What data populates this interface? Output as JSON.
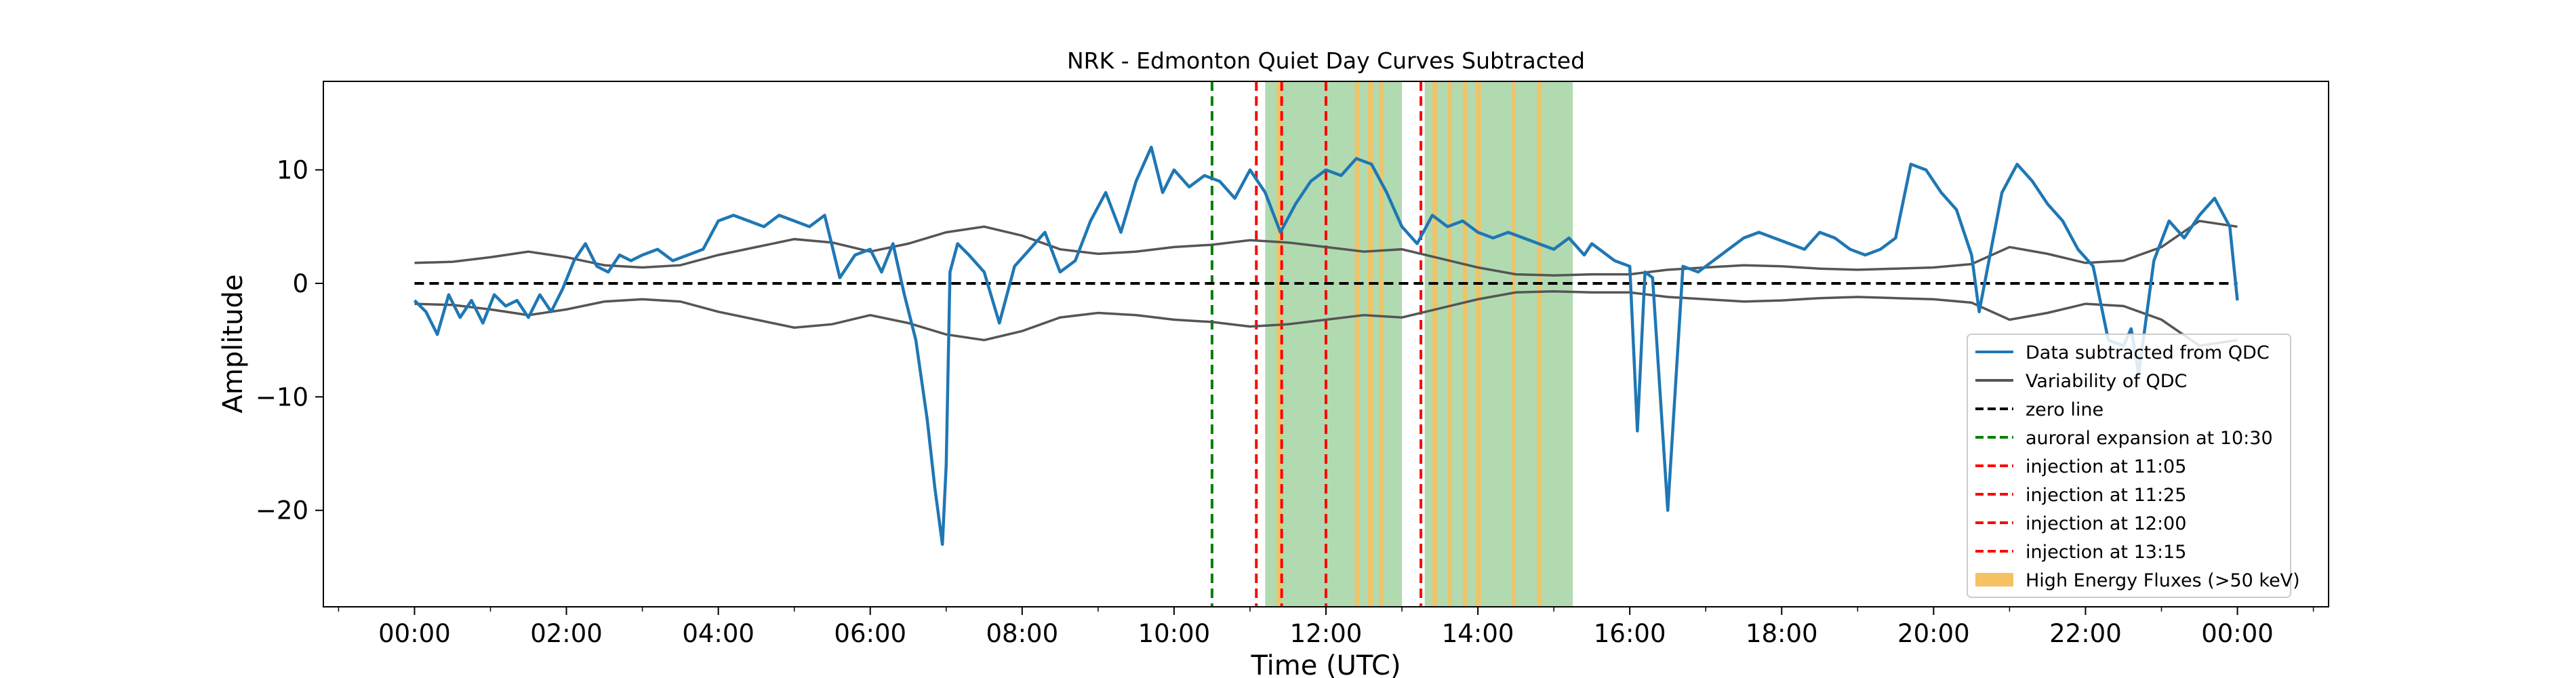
{
  "chart_data": {
    "type": "line",
    "title": "NRK - Edmonton  Quiet Day Curves Subtracted",
    "xlabel": "Time (UTC)",
    "ylabel": "Amplitude",
    "xlim": [
      -1.2,
      25.2
    ],
    "ylim": [
      -28.5,
      17.8
    ],
    "x_unit": "hours UTC",
    "x_ticks": [
      {
        "value": 0,
        "label": "00:00"
      },
      {
        "value": 2,
        "label": "02:00"
      },
      {
        "value": 4,
        "label": "04:00"
      },
      {
        "value": 6,
        "label": "06:00"
      },
      {
        "value": 8,
        "label": "08:00"
      },
      {
        "value": 10,
        "label": "10:00"
      },
      {
        "value": 12,
        "label": "12:00"
      },
      {
        "value": 14,
        "label": "14:00"
      },
      {
        "value": 16,
        "label": "16:00"
      },
      {
        "value": 18,
        "label": "18:00"
      },
      {
        "value": 20,
        "label": "20:00"
      },
      {
        "value": 22,
        "label": "22:00"
      },
      {
        "value": 24,
        "label": "00:00"
      }
    ],
    "y_ticks": [
      {
        "value": 10,
        "label": "10"
      },
      {
        "value": 0,
        "label": "0"
      },
      {
        "value": -10,
        "label": "−10"
      },
      {
        "value": -20,
        "label": "−20"
      }
    ],
    "grid": false,
    "legend_position": "lower-right",
    "colors": {
      "data": "#1f77b4",
      "variability": "#555555",
      "zero": "#000000",
      "auroral": "#008000",
      "injection": "#ff0000",
      "green_span": "#a3d3a3",
      "high_energy": "#f5c162"
    },
    "series": [
      {
        "name": "Data subtracted from QDC",
        "x": [
          0,
          0.15,
          0.3,
          0.45,
          0.6,
          0.75,
          0.9,
          1.05,
          1.2,
          1.35,
          1.5,
          1.65,
          1.8,
          1.95,
          2.1,
          2.25,
          2.4,
          2.55,
          2.7,
          2.85,
          3.0,
          3.2,
          3.4,
          3.6,
          3.8,
          4.0,
          4.2,
          4.4,
          4.6,
          4.8,
          5.0,
          5.2,
          5.4,
          5.6,
          5.8,
          6.0,
          6.15,
          6.3,
          6.45,
          6.6,
          6.75,
          6.85,
          6.95,
          7.0,
          7.05,
          7.15,
          7.3,
          7.5,
          7.7,
          7.9,
          8.1,
          8.3,
          8.5,
          8.7,
          8.9,
          9.1,
          9.3,
          9.5,
          9.7,
          9.85,
          10.0,
          10.2,
          10.4,
          10.6,
          10.8,
          11.0,
          11.2,
          11.4,
          11.6,
          11.8,
          12.0,
          12.2,
          12.4,
          12.6,
          12.8,
          13.0,
          13.2,
          13.4,
          13.6,
          13.8,
          14.0,
          14.2,
          14.4,
          14.6,
          14.8,
          15.0,
          15.2,
          15.4,
          15.5,
          15.6,
          15.8,
          16.0,
          16.1,
          16.2,
          16.3,
          16.5,
          16.7,
          16.9,
          17.1,
          17.3,
          17.5,
          17.7,
          17.9,
          18.1,
          18.3,
          18.5,
          18.7,
          18.9,
          19.1,
          19.3,
          19.5,
          19.7,
          19.9,
          20.1,
          20.3,
          20.5,
          20.6,
          20.7,
          20.9,
          21.1,
          21.3,
          21.5,
          21.7,
          21.9,
          22.1,
          22.3,
          22.5,
          22.6,
          22.7,
          22.8,
          22.9,
          23.1,
          23.3,
          23.5,
          23.7,
          23.9,
          24.0
        ],
        "y": [
          -1.5,
          -2.5,
          -4.5,
          -1.0,
          -3.0,
          -1.5,
          -3.5,
          -1.0,
          -2.0,
          -1.5,
          -3.0,
          -1.0,
          -2.5,
          -0.5,
          2.0,
          3.5,
          1.5,
          1.0,
          2.5,
          2.0,
          2.5,
          3.0,
          2.0,
          2.5,
          3.0,
          5.5,
          6.0,
          5.5,
          5.0,
          6.0,
          5.5,
          5.0,
          6.0,
          0.5,
          2.5,
          3.0,
          1.0,
          3.5,
          -1.0,
          -5.0,
          -12.0,
          -18.0,
          -23.0,
          -16.0,
          1.0,
          3.5,
          2.5,
          1.0,
          -3.5,
          1.5,
          3.0,
          4.5,
          1.0,
          2.0,
          5.5,
          8.0,
          4.5,
          9.0,
          12.0,
          8.0,
          10.0,
          8.5,
          9.5,
          9.0,
          7.5,
          10.0,
          8.0,
          4.5,
          7.0,
          9.0,
          10.0,
          9.5,
          11.0,
          10.5,
          8.0,
          5.0,
          3.5,
          6.0,
          5.0,
          5.5,
          4.5,
          4.0,
          4.5,
          4.0,
          3.5,
          3.0,
          4.0,
          2.5,
          3.5,
          3.0,
          2.0,
          1.5,
          -13.0,
          1.0,
          0.5,
          -20.0,
          1.5,
          1.0,
          2.0,
          3.0,
          4.0,
          4.5,
          4.0,
          3.5,
          3.0,
          4.5,
          4.0,
          3.0,
          2.5,
          3.0,
          4.0,
          10.5,
          10.0,
          8.0,
          6.5,
          2.5,
          -2.5,
          1.0,
          8.0,
          10.5,
          9.0,
          7.0,
          5.5,
          3.0,
          1.5,
          -5.0,
          -5.5,
          -4.0,
          -8.0,
          -3.0,
          2.0,
          5.5,
          4.0,
          6.0,
          7.5,
          5.0,
          -1.5
        ]
      },
      {
        "name": "Variability of QDC",
        "x": [
          0,
          0.5,
          1.0,
          1.5,
          2.0,
          2.5,
          3.0,
          3.5,
          4.0,
          4.5,
          5.0,
          5.5,
          6.0,
          6.5,
          7.0,
          7.5,
          8.0,
          8.5,
          9.0,
          9.5,
          10.0,
          10.5,
          11.0,
          11.5,
          12.0,
          12.5,
          13.0,
          13.5,
          14.0,
          14.5,
          15.0,
          15.5,
          16.0,
          16.5,
          17.0,
          17.5,
          18.0,
          18.5,
          19.0,
          19.5,
          20.0,
          20.5,
          21.0,
          21.5,
          22.0,
          22.5,
          23.0,
          23.5,
          24.0
        ],
        "upper": [
          1.8,
          1.9,
          2.3,
          2.8,
          2.3,
          1.6,
          1.4,
          1.6,
          2.5,
          3.2,
          3.9,
          3.6,
          2.8,
          3.5,
          4.5,
          5.0,
          4.2,
          3.0,
          2.6,
          2.8,
          3.2,
          3.4,
          3.8,
          3.6,
          3.2,
          2.8,
          3.0,
          2.2,
          1.4,
          0.8,
          0.7,
          0.8,
          0.8,
          1.2,
          1.4,
          1.6,
          1.5,
          1.3,
          1.2,
          1.3,
          1.4,
          1.7,
          3.2,
          2.6,
          1.8,
          2.0,
          3.2,
          5.5,
          5.0
        ],
        "lower": [
          -1.8,
          -1.9,
          -2.3,
          -2.8,
          -2.3,
          -1.6,
          -1.4,
          -1.6,
          -2.5,
          -3.2,
          -3.9,
          -3.6,
          -2.8,
          -3.5,
          -4.5,
          -5.0,
          -4.2,
          -3.0,
          -2.6,
          -2.8,
          -3.2,
          -3.4,
          -3.8,
          -3.6,
          -3.2,
          -2.8,
          -3.0,
          -2.2,
          -1.4,
          -0.8,
          -0.7,
          -0.8,
          -0.8,
          -1.2,
          -1.4,
          -1.6,
          -1.5,
          -1.3,
          -1.2,
          -1.3,
          -1.4,
          -1.7,
          -3.2,
          -2.6,
          -1.8,
          -2.0,
          -3.2,
          -5.5,
          -5.0
        ]
      },
      {
        "name": "zero line",
        "value": 0
      }
    ],
    "events": {
      "auroral": [
        {
          "name": "auroral expansion at 10:30",
          "x": 10.5
        }
      ],
      "injections": [
        {
          "name": "injection at 11:05",
          "x": 11.0833
        },
        {
          "name": "injection at 11:25",
          "x": 11.4167
        },
        {
          "name": "injection at 12:00",
          "x": 12.0
        },
        {
          "name": "injection at 13:15",
          "x": 13.25
        }
      ]
    },
    "green_spans": [
      [
        11.2,
        13.0
      ],
      [
        13.3,
        15.25
      ]
    ],
    "high_energy_spans": {
      "name": "High Energy Fluxes (>50 keV)",
      "ranges": [
        [
          11.35,
          11.42
        ],
        [
          12.38,
          12.44
        ],
        [
          12.55,
          12.62
        ],
        [
          12.7,
          12.75
        ],
        [
          13.4,
          13.47
        ],
        [
          13.6,
          13.66
        ],
        [
          13.8,
          13.86
        ],
        [
          13.97,
          14.04
        ],
        [
          14.45,
          14.5
        ],
        [
          14.78,
          14.84
        ]
      ]
    },
    "legend": [
      {
        "label": "Data subtracted from QDC",
        "kind": "line",
        "color": "#1f77b4",
        "dash": false
      },
      {
        "label": "Variability of QDC",
        "kind": "line",
        "color": "#555555",
        "dash": false
      },
      {
        "label": "zero line",
        "kind": "line",
        "color": "#000000",
        "dash": true
      },
      {
        "label": "auroral expansion at 10:30",
        "kind": "line",
        "color": "#008000",
        "dash": true
      },
      {
        "label": "injection at 11:05",
        "kind": "line",
        "color": "#ff0000",
        "dash": true
      },
      {
        "label": "injection at 11:25",
        "kind": "line",
        "color": "#ff0000",
        "dash": true
      },
      {
        "label": "injection at 12:00",
        "kind": "line",
        "color": "#ff0000",
        "dash": true
      },
      {
        "label": "injection at 13:15",
        "kind": "line",
        "color": "#ff0000",
        "dash": true
      },
      {
        "label": "High Energy Fluxes (>50 keV)",
        "kind": "patch",
        "color": "#f5c162",
        "dash": false
      }
    ]
  }
}
